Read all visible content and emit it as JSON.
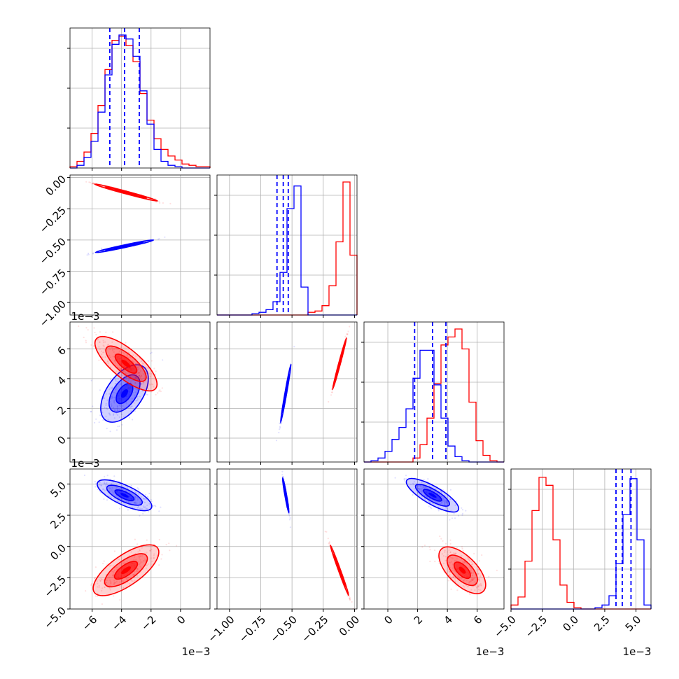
{
  "chart_data": {
    "type": "corner",
    "x_labels": [
      "",
      "",
      "",
      ""
    ],
    "y_labels": [
      "",
      "",
      "",
      ""
    ],
    "colors": {
      "series_a": "#0000ff",
      "series_b": "#ff0000",
      "grid": "#b0b0b0"
    },
    "grid": true,
    "parameters": [
      {
        "range": [
          -0.0075,
          0.002
        ],
        "ticks": [
          -0.006,
          -0.004,
          -0.002,
          0
        ],
        "tick_labels": [
          "−6",
          "−4",
          "−2",
          "0"
        ],
        "offset": "1e−3",
        "hist": {
          "bins": 20,
          "series_a": [
            0.0,
            0.02,
            0.08,
            0.2,
            0.42,
            0.7,
            0.93,
            1.0,
            0.97,
            0.84,
            0.58,
            0.33,
            0.14,
            0.05,
            0.02,
            0.01,
            0.0,
            0.0,
            0.0,
            0.0
          ],
          "series_b": [
            0.01,
            0.05,
            0.12,
            0.26,
            0.47,
            0.74,
            0.96,
            0.99,
            0.92,
            0.8,
            0.56,
            0.36,
            0.22,
            0.14,
            0.09,
            0.06,
            0.03,
            0.02,
            0.01,
            0.01
          ]
        },
        "quantiles_a": [
          -0.0048,
          -0.0038,
          -0.0028
        ]
      },
      {
        "range": [
          -1.1,
          0.02
        ],
        "ticks": [
          -1.0,
          -0.75,
          -0.5,
          -0.25,
          0.0
        ],
        "tick_labels": [
          "−1.00",
          "−0.75",
          "−0.50",
          "−0.25",
          "0.00"
        ],
        "offset": "",
        "hist": {
          "bins": 20,
          "series_a": [
            0.0,
            0.0,
            0.0,
            0.0,
            0.0,
            0.01,
            0.02,
            0.04,
            0.1,
            0.32,
            0.8,
            0.97,
            0.21,
            0.0,
            0.0,
            0.0,
            0.0,
            0.0,
            0.0,
            0.0
          ],
          "series_b": [
            0.0,
            0.0,
            0.0,
            0.0,
            0.0,
            0.0,
            0.0,
            0.0,
            0.0,
            0.0,
            0.0,
            0.0,
            0.0,
            0.02,
            0.03,
            0.07,
            0.22,
            0.55,
            1.0,
            0.45
          ]
        },
        "quantiles_a": [
          -0.62,
          -0.57,
          -0.53
        ]
      },
      {
        "range": [
          -0.0016,
          0.0078
        ],
        "ticks": [
          0,
          0.002,
          0.004,
          0.006
        ],
        "tick_labels": [
          "0",
          "2",
          "4",
          "6"
        ],
        "offset": "1e−3",
        "hist": {
          "bins": 20,
          "series_a": [
            0.0,
            0.01,
            0.03,
            0.08,
            0.17,
            0.26,
            0.4,
            0.63,
            0.84,
            0.84,
            0.58,
            0.33,
            0.12,
            0.04,
            0.01,
            0.0,
            0.0,
            0.0,
            0.0,
            0.0
          ],
          "series_b": [
            0.0,
            0.0,
            0.0,
            0.0,
            0.0,
            0.0,
            0.0,
            0.03,
            0.13,
            0.33,
            0.59,
            0.88,
            0.94,
            1.0,
            0.85,
            0.45,
            0.16,
            0.05,
            0.01,
            0.0
          ]
        },
        "quantiles_a": [
          0.0018,
          0.003,
          0.0039
        ]
      },
      {
        "range": [
          -0.005,
          0.0062
        ],
        "ticks": [
          -0.005,
          -0.0025,
          0,
          0.0025,
          0.005
        ],
        "tick_labels": [
          "−5.0",
          "−2.5",
          "0.0",
          "2.5",
          "5.0"
        ],
        "offset": "1e−3",
        "hist": {
          "bins": 20,
          "series_a": [
            0.0,
            0.0,
            0.0,
            0.0,
            0.0,
            0.0,
            0.0,
            0.0,
            0.0,
            0.0,
            0.0,
            0.0,
            0.01,
            0.03,
            0.1,
            0.34,
            0.71,
            0.98,
            0.52,
            0.03
          ],
          "series_b": [
            0.03,
            0.09,
            0.36,
            0.74,
            0.99,
            0.93,
            0.52,
            0.18,
            0.05,
            0.01,
            0.0,
            0.0,
            0.0,
            0.0,
            0.0,
            0.0,
            0.0,
            0.0,
            0.0,
            0.0
          ]
        },
        "quantiles_a": [
          0.0034,
          0.0039,
          0.0046
        ]
      }
    ],
    "series": [
      {
        "name": "",
        "key": "series_a",
        "color": "#0000ff",
        "mean": [
          -0.0038,
          -0.55,
          0.003,
          0.0041
        ]
      },
      {
        "name": "",
        "key": "series_b",
        "color": "#ff0000",
        "mean": [
          -0.0037,
          -0.12,
          0.005,
          -0.0019
        ]
      }
    ],
    "pairs": [
      {
        "row": 1,
        "col": 0,
        "series_a": {
          "sx": 1.0,
          "sy": 0.075,
          "angle_deg": 12
        },
        "series_b": {
          "sx": 1.1,
          "sy": 0.075,
          "angle_deg": -15
        }
      },
      {
        "row": 2,
        "col": 0,
        "series_a": {
          "sx": 1.0,
          "sy": 1.1,
          "angle_deg": 55
        },
        "series_b": {
          "sx": 1.3,
          "sy": 0.8,
          "angle_deg": -40
        }
      },
      {
        "row": 2,
        "col": 1,
        "series_a": {
          "sx": 0.05,
          "sy": 1.0,
          "angle_deg": 80
        },
        "series_b": {
          "sx": 0.05,
          "sy": 0.9,
          "angle_deg": 75
        }
      },
      {
        "row": 3,
        "col": 0,
        "series_a": {
          "sx": 1.0,
          "sy": 0.55,
          "angle_deg": -25
        },
        "series_b": {
          "sx": 1.3,
          "sy": 0.85,
          "angle_deg": 35
        }
      },
      {
        "row": 3,
        "col": 1,
        "series_a": {
          "sx": 0.05,
          "sy": 0.6,
          "angle_deg": -80
        },
        "series_b": {
          "sx": 0.06,
          "sy": 0.9,
          "angle_deg": -70
        }
      },
      {
        "row": 3,
        "col": 2,
        "series_a": {
          "sx": 1.0,
          "sy": 0.5,
          "angle_deg": -30
        },
        "series_b": {
          "sx": 1.0,
          "sy": 0.8,
          "angle_deg": -45
        }
      }
    ]
  }
}
